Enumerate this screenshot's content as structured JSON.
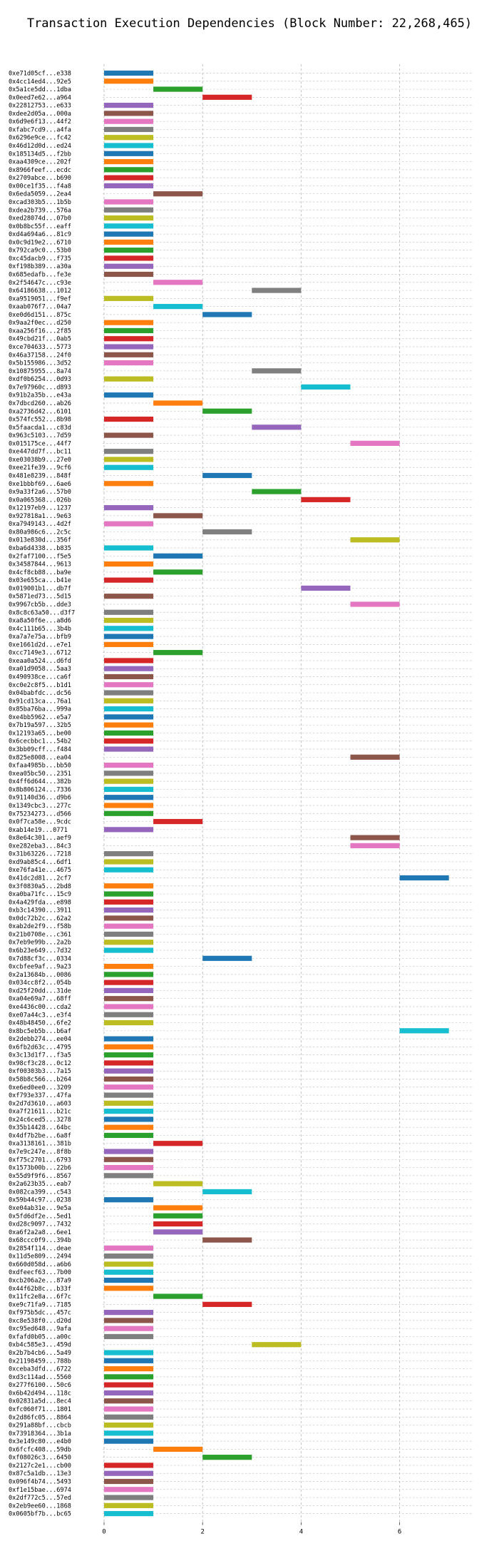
{
  "chart_data": {
    "type": "bar",
    "orientation": "horizontal-gantt",
    "title": "Transaction Execution Dependencies (Block Number: 22,268,465)",
    "xlabel": "",
    "ylabel": "",
    "xlim": [
      0,
      7.5
    ],
    "xticks": [
      0,
      2,
      4,
      6
    ],
    "grid": true,
    "legend": "none",
    "palette": [
      "#1f77b4",
      "#ff7f0e",
      "#2ca02c",
      "#d62728",
      "#9467bd",
      "#8c564b",
      "#e377c2",
      "#7f7f7f",
      "#bcbd22",
      "#17becf"
    ],
    "rows": [
      {
        "tx": "0xe71d05cf...e338",
        "start": 0,
        "end": 1
      },
      {
        "tx": "0x4cc14ed4...92e5",
        "start": 0,
        "end": 1
      },
      {
        "tx": "0x5a1ce5dd...1dba",
        "start": 1,
        "end": 2
      },
      {
        "tx": "0x0eed7e62...a964",
        "start": 2,
        "end": 3
      },
      {
        "tx": "0x22812753...e633",
        "start": 0,
        "end": 1
      },
      {
        "tx": "0xdee2d05a...000a",
        "start": 0,
        "end": 1
      },
      {
        "tx": "0x6d9e6f13...44f2",
        "start": 0,
        "end": 1
      },
      {
        "tx": "0xfabc7cd9...a4fa",
        "start": 0,
        "end": 1
      },
      {
        "tx": "0x6296e9ce...fc42",
        "start": 0,
        "end": 1
      },
      {
        "tx": "0x46d12d0d...ed24",
        "start": 0,
        "end": 1
      },
      {
        "tx": "0x185134d5...f2bb",
        "start": 0,
        "end": 1
      },
      {
        "tx": "0xaa4309ce...202f",
        "start": 0,
        "end": 1
      },
      {
        "tx": "0x8966feef...ecdc",
        "start": 0,
        "end": 1
      },
      {
        "tx": "0x2709abce...b690",
        "start": 0,
        "end": 1
      },
      {
        "tx": "0x00ce1f35...f4a8",
        "start": 0,
        "end": 1
      },
      {
        "tx": "0x6eda5059...2ea4",
        "start": 1,
        "end": 2
      },
      {
        "tx": "0xcad303b5...1b5b",
        "start": 0,
        "end": 1
      },
      {
        "tx": "0xdea2b739...576a",
        "start": 0,
        "end": 1
      },
      {
        "tx": "0xed28074d...07b0",
        "start": 0,
        "end": 1
      },
      {
        "tx": "0x0b8bc55f...eaff",
        "start": 0,
        "end": 1
      },
      {
        "tx": "0xd4a694a6...81c9",
        "start": 0,
        "end": 1
      },
      {
        "tx": "0x0c9d19e2...6710",
        "start": 0,
        "end": 1
      },
      {
        "tx": "0x792ca9c0...53b0",
        "start": 0,
        "end": 1
      },
      {
        "tx": "0xc45dacb9...f735",
        "start": 0,
        "end": 1
      },
      {
        "tx": "0xf198b389...a30a",
        "start": 0,
        "end": 1
      },
      {
        "tx": "0x685edafb...fe3e",
        "start": 0,
        "end": 1
      },
      {
        "tx": "0x2f54647c...c93e",
        "start": 1,
        "end": 2
      },
      {
        "tx": "0x64186638...1012",
        "start": 3,
        "end": 4
      },
      {
        "tx": "0xa9519051...f9ef",
        "start": 0,
        "end": 1
      },
      {
        "tx": "0xaab076f7...04a7",
        "start": 1,
        "end": 2
      },
      {
        "tx": "0xe0d6d151...875c",
        "start": 2,
        "end": 3
      },
      {
        "tx": "0x9aa2f0ec...d250",
        "start": 0,
        "end": 1
      },
      {
        "tx": "0xaa256f16...2f85",
        "start": 0,
        "end": 1
      },
      {
        "tx": "0x49cbd21f...0ab5",
        "start": 0,
        "end": 1
      },
      {
        "tx": "0xce704633...5773",
        "start": 0,
        "end": 1
      },
      {
        "tx": "0x46a37158...24f0",
        "start": 0,
        "end": 1
      },
      {
        "tx": "0x5b155986...3d52",
        "start": 0,
        "end": 1
      },
      {
        "tx": "0x10875955...8a74",
        "start": 3,
        "end": 4
      },
      {
        "tx": "0xdf0b6254...0d93",
        "start": 0,
        "end": 1
      },
      {
        "tx": "0x7e97960c...d893",
        "start": 4,
        "end": 5
      },
      {
        "tx": "0x91b2a35b...e43a",
        "start": 0,
        "end": 1
      },
      {
        "tx": "0x7dbcd260...ab26",
        "start": 1,
        "end": 2
      },
      {
        "tx": "0xa2736d42...6101",
        "start": 2,
        "end": 3
      },
      {
        "tx": "0x574fc552...8b98",
        "start": 0,
        "end": 1
      },
      {
        "tx": "0x5faacda1...c83d",
        "start": 3,
        "end": 4
      },
      {
        "tx": "0x963c5103...7d59",
        "start": 0,
        "end": 1
      },
      {
        "tx": "0x015175ce...44f7",
        "start": 5,
        "end": 6
      },
      {
        "tx": "0xe447dd7f...bc11",
        "start": 0,
        "end": 1
      },
      {
        "tx": "0xe03038b9...27e0",
        "start": 0,
        "end": 1
      },
      {
        "tx": "0xee21fe39...9cf6",
        "start": 0,
        "end": 1
      },
      {
        "tx": "0x481e8239...848f",
        "start": 2,
        "end": 3
      },
      {
        "tx": "0xe1bbbf69...6ae6",
        "start": 0,
        "end": 1
      },
      {
        "tx": "0x9a33f2a6...57b0",
        "start": 3,
        "end": 4
      },
      {
        "tx": "0x0a065368...026b",
        "start": 4,
        "end": 5
      },
      {
        "tx": "0x12197eb9...1237",
        "start": 0,
        "end": 1
      },
      {
        "tx": "0x927818a1...9e63",
        "start": 1,
        "end": 2
      },
      {
        "tx": "0xa7949143...4d2f",
        "start": 0,
        "end": 1
      },
      {
        "tx": "0x80a986c6...2c5c",
        "start": 2,
        "end": 3
      },
      {
        "tx": "0x013e830d...356f",
        "start": 5,
        "end": 6
      },
      {
        "tx": "0xba6d4338...b835",
        "start": 0,
        "end": 1
      },
      {
        "tx": "0x2faf7100...f5e5",
        "start": 1,
        "end": 2
      },
      {
        "tx": "0x34587844...9613",
        "start": 0,
        "end": 1
      },
      {
        "tx": "0x4cf8cb88...ba9e",
        "start": 1,
        "end": 2
      },
      {
        "tx": "0x03e655ca...b41e",
        "start": 0,
        "end": 1
      },
      {
        "tx": "0x019001b1...db7f",
        "start": 4,
        "end": 5
      },
      {
        "tx": "0x5871ed73...5d15",
        "start": 0,
        "end": 1
      },
      {
        "tx": "0x9967cb5b...dde3",
        "start": 5,
        "end": 6
      },
      {
        "tx": "0x8c8c63a50...d3f7",
        "start": 0,
        "end": 1
      },
      {
        "tx": "0xa8a50f6e...a8d6",
        "start": 0,
        "end": 1
      },
      {
        "tx": "0x4c111b65...3b4b",
        "start": 0,
        "end": 1
      },
      {
        "tx": "0xa7a7e75a...bfb9",
        "start": 0,
        "end": 1
      },
      {
        "tx": "0xe1661d2d...e7e1",
        "start": 0,
        "end": 1
      },
      {
        "tx": "0xcc7149e3...6712",
        "start": 1,
        "end": 2
      },
      {
        "tx": "0xeaa0a524...d6fd",
        "start": 0,
        "end": 1
      },
      {
        "tx": "0xa01d9058...5aa3",
        "start": 0,
        "end": 1
      },
      {
        "tx": "0x490938ce...ca6f",
        "start": 0,
        "end": 1
      },
      {
        "tx": "0xc0e2c8f5...b1d1",
        "start": 0,
        "end": 1
      },
      {
        "tx": "0x04babfdc...dc56",
        "start": 0,
        "end": 1
      },
      {
        "tx": "0x91cd13ca...76a1",
        "start": 0,
        "end": 1
      },
      {
        "tx": "0x85ba76ba...999a",
        "start": 0,
        "end": 1
      },
      {
        "tx": "0xe4bb5962...e5a7",
        "start": 0,
        "end": 1
      },
      {
        "tx": "0x7b19a597...32b5",
        "start": 0,
        "end": 1
      },
      {
        "tx": "0x12193a65...be00",
        "start": 0,
        "end": 1
      },
      {
        "tx": "0x6cecbbc1...54b2",
        "start": 0,
        "end": 1
      },
      {
        "tx": "0x3bb09cff...f484",
        "start": 0,
        "end": 1
      },
      {
        "tx": "0x825e8008...ea04",
        "start": 5,
        "end": 6
      },
      {
        "tx": "0xfaa4985b...bb50",
        "start": 0,
        "end": 1
      },
      {
        "tx": "0xea05bc50...2351",
        "start": 0,
        "end": 1
      },
      {
        "tx": "0x4ff6d644...382b",
        "start": 0,
        "end": 1
      },
      {
        "tx": "0x8b806124...7336",
        "start": 0,
        "end": 1
      },
      {
        "tx": "0x91140d36...d9b6",
        "start": 0,
        "end": 1
      },
      {
        "tx": "0x1349cbc3...277c",
        "start": 0,
        "end": 1
      },
      {
        "tx": "0x75234273...d566",
        "start": 0,
        "end": 1
      },
      {
        "tx": "0x0f7ca58e...9cdc",
        "start": 1,
        "end": 2
      },
      {
        "tx": "0xab14e19...0771",
        "start": 0,
        "end": 1
      },
      {
        "tx": "0x8e64c301...aef9",
        "start": 5,
        "end": 6
      },
      {
        "tx": "0xe282eba3...84c3",
        "start": 5,
        "end": 6
      },
      {
        "tx": "0x31b63226...7218",
        "start": 0,
        "end": 1
      },
      {
        "tx": "0xd9ab85c4...6df1",
        "start": 0,
        "end": 1
      },
      {
        "tx": "0xe76fa41e...4675",
        "start": 0,
        "end": 1
      },
      {
        "tx": "0x41dc2d81...2cf7",
        "start": 6,
        "end": 7
      },
      {
        "tx": "0x3f0830a5...2bd8",
        "start": 0,
        "end": 1
      },
      {
        "tx": "0xa0ba71fc...15c9",
        "start": 0,
        "end": 1
      },
      {
        "tx": "0x4a429fda...e898",
        "start": 0,
        "end": 1
      },
      {
        "tx": "0xb3c14390...3911",
        "start": 0,
        "end": 1
      },
      {
        "tx": "0x0dc72b2c...62a2",
        "start": 0,
        "end": 1
      },
      {
        "tx": "0xab2de2f9...f58b",
        "start": 0,
        "end": 1
      },
      {
        "tx": "0x21b0708e...c361",
        "start": 0,
        "end": 1
      },
      {
        "tx": "0x7eb9e99b...2a2b",
        "start": 0,
        "end": 1
      },
      {
        "tx": "0x6b23e649...7d32",
        "start": 0,
        "end": 1
      },
      {
        "tx": "0x7d88cf3c...0334",
        "start": 2,
        "end": 3
      },
      {
        "tx": "0xcbfee9af...9a23",
        "start": 0,
        "end": 1
      },
      {
        "tx": "0x2a13684b...0086",
        "start": 0,
        "end": 1
      },
      {
        "tx": "0x034cc8f2...054b",
        "start": 0,
        "end": 1
      },
      {
        "tx": "0xd25f20dd...31de",
        "start": 0,
        "end": 1
      },
      {
        "tx": "0xa04e69a7...68ff",
        "start": 0,
        "end": 1
      },
      {
        "tx": "0xe4436c00...cda2",
        "start": 0,
        "end": 1
      },
      {
        "tx": "0xe07a44c3...e3f4",
        "start": 0,
        "end": 1
      },
      {
        "tx": "0x48b48450...6fe2",
        "start": 0,
        "end": 1
      },
      {
        "tx": "0x8bc5eb5b...b6af",
        "start": 6,
        "end": 7
      },
      {
        "tx": "0x2debb274...ee04",
        "start": 0,
        "end": 1
      },
      {
        "tx": "0x6fb2d63c...4795",
        "start": 0,
        "end": 1
      },
      {
        "tx": "0x3c13d1f7...f3a5",
        "start": 0,
        "end": 1
      },
      {
        "tx": "0x98cf3c28...0c12",
        "start": 0,
        "end": 1
      },
      {
        "tx": "0xf00303b3...7a15",
        "start": 0,
        "end": 1
      },
      {
        "tx": "0x58b8c566...b264",
        "start": 0,
        "end": 1
      },
      {
        "tx": "0xe6ed0ee0...3209",
        "start": 0,
        "end": 1
      },
      {
        "tx": "0xf793e337...47fa",
        "start": 0,
        "end": 1
      },
      {
        "tx": "0x2d7d3610...a603",
        "start": 0,
        "end": 1
      },
      {
        "tx": "0xa7f21611...b21c",
        "start": 0,
        "end": 1
      },
      {
        "tx": "0x24c6ced5...3278",
        "start": 0,
        "end": 1
      },
      {
        "tx": "0x35b14428...64bc",
        "start": 0,
        "end": 1
      },
      {
        "tx": "0x4df7b2be...6a8f",
        "start": 0,
        "end": 1
      },
      {
        "tx": "0xa3138161...381b",
        "start": 1,
        "end": 2
      },
      {
        "tx": "0x7e9c247e...8f8b",
        "start": 0,
        "end": 1
      },
      {
        "tx": "0xf75c2701...6793",
        "start": 0,
        "end": 1
      },
      {
        "tx": "0x1573b00b...22b6",
        "start": 0,
        "end": 1
      },
      {
        "tx": "0x55d9f9f6...8567",
        "start": 0,
        "end": 1
      },
      {
        "tx": "0x2a623b35...eab7",
        "start": 1,
        "end": 2
      },
      {
        "tx": "0x082ca399...c543",
        "start": 2,
        "end": 3
      },
      {
        "tx": "0x59b44c97...0238",
        "start": 0,
        "end": 1
      },
      {
        "tx": "0xe04ab31e...9e5a",
        "start": 1,
        "end": 2
      },
      {
        "tx": "0x5fd6df2e...5ed1",
        "start": 1,
        "end": 2
      },
      {
        "tx": "0xd28c9097...7432",
        "start": 1,
        "end": 2
      },
      {
        "tx": "0xa6f2a2a8...6ee1",
        "start": 1,
        "end": 2
      },
      {
        "tx": "0x68ccc0f9...394b",
        "start": 2,
        "end": 3
      },
      {
        "tx": "0x2854f114...deae",
        "start": 0,
        "end": 1
      },
      {
        "tx": "0x11d5e809...2494",
        "start": 0,
        "end": 1
      },
      {
        "tx": "0x660d058d...a6b6",
        "start": 0,
        "end": 1
      },
      {
        "tx": "0xdfeecf63...7b00",
        "start": 0,
        "end": 1
      },
      {
        "tx": "0xcb206a2e...87a9",
        "start": 0,
        "end": 1
      },
      {
        "tx": "0x44f62b8c...b33f",
        "start": 0,
        "end": 1
      },
      {
        "tx": "0x11fc2e8a...6f7c",
        "start": 1,
        "end": 2
      },
      {
        "tx": "0xe9c71fa9...7185",
        "start": 2,
        "end": 3
      },
      {
        "tx": "0xf975b5dc...457c",
        "start": 0,
        "end": 1
      },
      {
        "tx": "0xc8e538f0...d20d",
        "start": 0,
        "end": 1
      },
      {
        "tx": "0xc95ed648...9afa",
        "start": 0,
        "end": 1
      },
      {
        "tx": "0xfafd0b05...a00c",
        "start": 0,
        "end": 1
      },
      {
        "tx": "0xb4c585e3...459d",
        "start": 3,
        "end": 4
      },
      {
        "tx": "0x2b7b4cb6...5a49",
        "start": 0,
        "end": 1
      },
      {
        "tx": "0x21198459...788b",
        "start": 0,
        "end": 1
      },
      {
        "tx": "0xceba3dfd...6722",
        "start": 0,
        "end": 1
      },
      {
        "tx": "0xd3c114ad...5560",
        "start": 0,
        "end": 1
      },
      {
        "tx": "0x277f6100...50c6",
        "start": 0,
        "end": 1
      },
      {
        "tx": "0x6b42d494...118c",
        "start": 0,
        "end": 1
      },
      {
        "tx": "0x02831a5d...8ec4",
        "start": 0,
        "end": 1
      },
      {
        "tx": "0xfc060f71...1801",
        "start": 0,
        "end": 1
      },
      {
        "tx": "0x2d86fc05...8864",
        "start": 0,
        "end": 1
      },
      {
        "tx": "0x291a88bf...cbcb",
        "start": 0,
        "end": 1
      },
      {
        "tx": "0x73918364...3b1a",
        "start": 0,
        "end": 1
      },
      {
        "tx": "0x3e149c80...e4b0",
        "start": 0,
        "end": 1
      },
      {
        "tx": "0x6fcfc408...59db",
        "start": 1,
        "end": 2
      },
      {
        "tx": "0xf08026c3...6450",
        "start": 2,
        "end": 3
      },
      {
        "tx": "0x2127c2e1...cb00",
        "start": 0,
        "end": 1
      },
      {
        "tx": "0x87c5a1db...13e3",
        "start": 0,
        "end": 1
      },
      {
        "tx": "0x096f4b74...5493",
        "start": 0,
        "end": 1
      },
      {
        "tx": "0xf1e15bae...6974",
        "start": 0,
        "end": 1
      },
      {
        "tx": "0x2df772c5...57ed",
        "start": 0,
        "end": 1
      },
      {
        "tx": "0x2eb9ee60...1868",
        "start": 0,
        "end": 1
      },
      {
        "tx": "0x0605bf7b...bc65",
        "start": 0,
        "end": 1
      }
    ]
  }
}
